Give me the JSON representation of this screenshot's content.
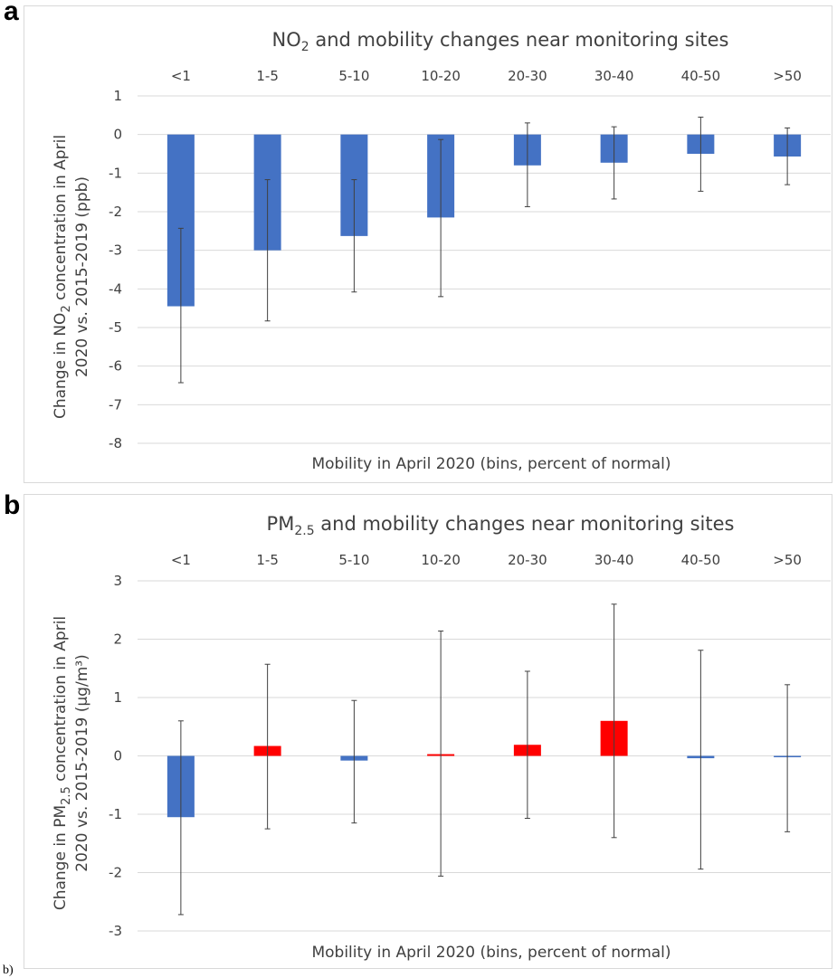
{
  "panels": {
    "a": {
      "letter": "a"
    },
    "b": {
      "letter": "b",
      "corner_note": "b)"
    }
  },
  "colors": {
    "negative": "#4472c4",
    "positive": "#ff0000"
  },
  "chart_data": [
    {
      "type": "bar",
      "title_pre": "NO",
      "title_sub": "2",
      "title_post": " and mobility changes near monitoring sites",
      "categories": [
        "<1",
        "1-5",
        "5-10",
        "10-20",
        "20-30",
        "30-40",
        "40-50",
        ">50"
      ],
      "values": [
        -4.45,
        -3.0,
        -2.63,
        -2.15,
        -0.8,
        -0.73,
        -0.5,
        -0.57
      ],
      "error_high": [
        -2.43,
        -1.17,
        -1.17,
        -0.13,
        0.3,
        0.2,
        0.45,
        0.17
      ],
      "error_low": [
        -6.43,
        -4.83,
        -4.08,
        -4.2,
        -1.87,
        -1.67,
        -1.47,
        -1.3
      ],
      "ylim": [
        -8,
        1
      ],
      "yticks": [
        1,
        0,
        -1,
        -2,
        -3,
        -4,
        -5,
        -6,
        -7,
        -8
      ],
      "ylabel_line1": "Change in NO",
      "ylabel_line1_sub": "2",
      "ylabel_line1_post": " concentration in April",
      "ylabel_line2": "2020 vs. 2015-2019 (ppb)",
      "xlabel": "Mobility in April 2020 (bins, percent of normal)",
      "grid": true,
      "legend": "none"
    },
    {
      "type": "bar",
      "title_pre": "PM",
      "title_sub": "2.5",
      "title_post": " and mobility changes near monitoring sites",
      "categories": [
        "<1",
        "1-5",
        "5-10",
        "10-20",
        "20-30",
        "30-40",
        "40-50",
        ">50"
      ],
      "values": [
        -1.05,
        0.17,
        -0.08,
        0.03,
        0.19,
        0.6,
        -0.04,
        -0.01
      ],
      "error_high": [
        0.6,
        1.57,
        0.95,
        2.14,
        1.45,
        2.6,
        1.81,
        1.22
      ],
      "error_low": [
        -2.72,
        -1.25,
        -1.15,
        -2.06,
        -1.07,
        -1.4,
        -1.94,
        -1.3
      ],
      "ylim": [
        -3,
        3
      ],
      "yticks": [
        3,
        2,
        1,
        0,
        -1,
        -2,
        -3
      ],
      "ylabel_line1": "Change in PM",
      "ylabel_line1_sub": "2.5",
      "ylabel_line1_post": " concentration in April",
      "ylabel_line2": "2020 vs. 2015-2019 (µg/m³)",
      "xlabel": "Mobility in April 2020 (bins, percent of normal)",
      "grid": true,
      "legend": "none"
    }
  ]
}
